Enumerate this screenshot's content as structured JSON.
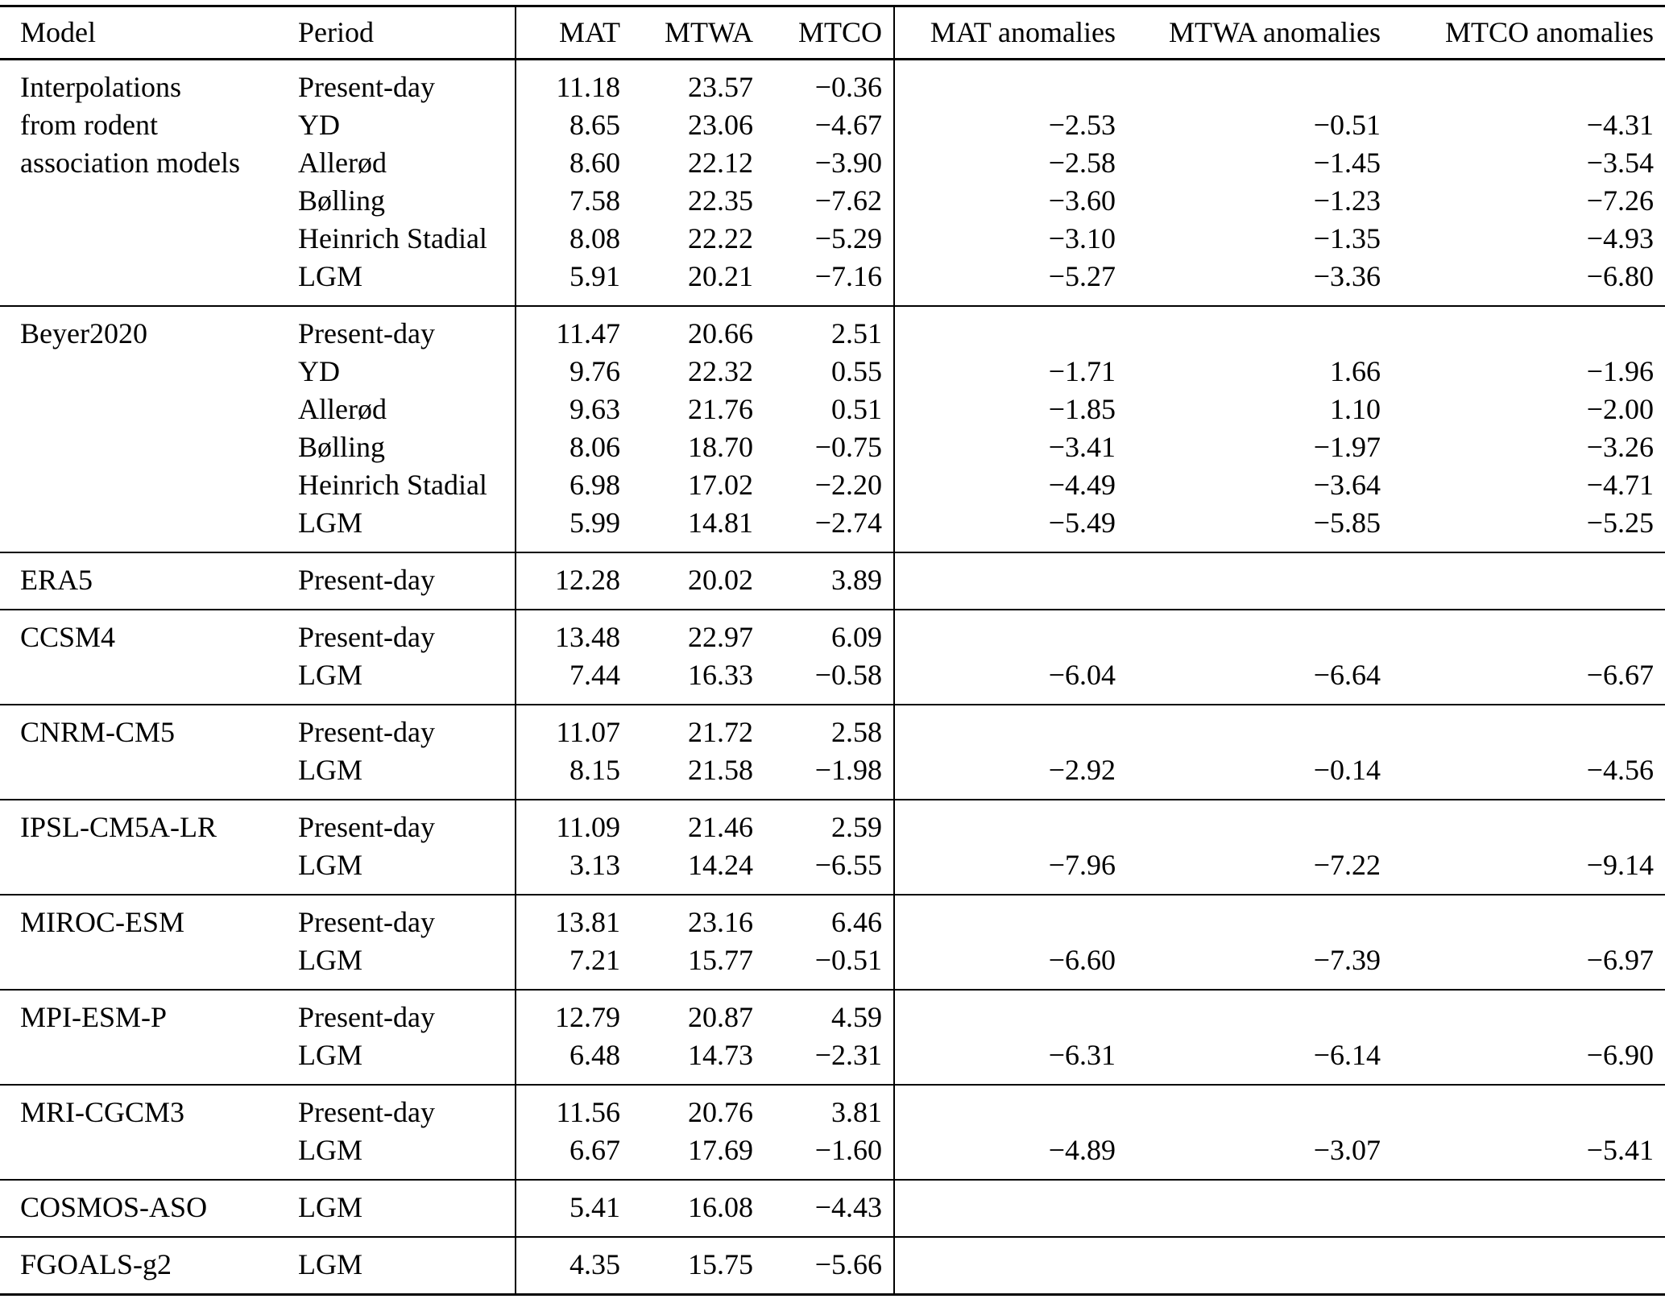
{
  "table": {
    "columns": [
      {
        "key": "model",
        "label": "Model"
      },
      {
        "key": "period",
        "label": "Period"
      },
      {
        "key": "mat",
        "label": "MAT"
      },
      {
        "key": "mtwa",
        "label": "MTWA"
      },
      {
        "key": "mtco",
        "label": "MTCO"
      },
      {
        "key": "mat_anom",
        "label": "MAT anomalies"
      },
      {
        "key": "mtwa_anom",
        "label": "MTWA anomalies"
      },
      {
        "key": "mtco_anom",
        "label": "MTCO anomalies"
      }
    ],
    "blocks": [
      {
        "model_lines": [
          "Interpolations",
          "from rodent",
          "association models"
        ],
        "rows": [
          {
            "period": "Present-day",
            "mat": "11.18",
            "mtwa": "23.57",
            "mtco": "−0.36",
            "mat_anom": "",
            "mtwa_anom": "",
            "mtco_anom": ""
          },
          {
            "period": "YD",
            "mat": "8.65",
            "mtwa": "23.06",
            "mtco": "−4.67",
            "mat_anom": "−2.53",
            "mtwa_anom": "−0.51",
            "mtco_anom": "−4.31"
          },
          {
            "period": "Allerød",
            "mat": "8.60",
            "mtwa": "22.12",
            "mtco": "−3.90",
            "mat_anom": "−2.58",
            "mtwa_anom": "−1.45",
            "mtco_anom": "−3.54"
          },
          {
            "period": "Bølling",
            "mat": "7.58",
            "mtwa": "22.35",
            "mtco": "−7.62",
            "mat_anom": "−3.60",
            "mtwa_anom": "−1.23",
            "mtco_anom": "−7.26"
          },
          {
            "period": "Heinrich Stadial",
            "mat": "8.08",
            "mtwa": "22.22",
            "mtco": "−5.29",
            "mat_anom": "−3.10",
            "mtwa_anom": "−1.35",
            "mtco_anom": "−4.93"
          },
          {
            "period": "LGM",
            "mat": "5.91",
            "mtwa": "20.21",
            "mtco": "−7.16",
            "mat_anom": "−5.27",
            "mtwa_anom": "−3.36",
            "mtco_anom": "−6.80"
          }
        ]
      },
      {
        "model_lines": [
          "Beyer2020"
        ],
        "rows": [
          {
            "period": "Present-day",
            "mat": "11.47",
            "mtwa": "20.66",
            "mtco": "2.51",
            "mat_anom": "",
            "mtwa_anom": "",
            "mtco_anom": ""
          },
          {
            "period": "YD",
            "mat": "9.76",
            "mtwa": "22.32",
            "mtco": "0.55",
            "mat_anom": "−1.71",
            "mtwa_anom": "1.66",
            "mtco_anom": "−1.96"
          },
          {
            "period": "Allerød",
            "mat": "9.63",
            "mtwa": "21.76",
            "mtco": "0.51",
            "mat_anom": "−1.85",
            "mtwa_anom": "1.10",
            "mtco_anom": "−2.00"
          },
          {
            "period": "Bølling",
            "mat": "8.06",
            "mtwa": "18.70",
            "mtco": "−0.75",
            "mat_anom": "−3.41",
            "mtwa_anom": "−1.97",
            "mtco_anom": "−3.26"
          },
          {
            "period": "Heinrich Stadial",
            "mat": "6.98",
            "mtwa": "17.02",
            "mtco": "−2.20",
            "mat_anom": "−4.49",
            "mtwa_anom": "−3.64",
            "mtco_anom": "−4.71"
          },
          {
            "period": "LGM",
            "mat": "5.99",
            "mtwa": "14.81",
            "mtco": "−2.74",
            "mat_anom": "−5.49",
            "mtwa_anom": "−5.85",
            "mtco_anom": "−5.25"
          }
        ]
      },
      {
        "model_lines": [
          "ERA5"
        ],
        "rows": [
          {
            "period": "Present-day",
            "mat": "12.28",
            "mtwa": "20.02",
            "mtco": "3.89",
            "mat_anom": "",
            "mtwa_anom": "",
            "mtco_anom": ""
          }
        ]
      },
      {
        "model_lines": [
          "CCSM4"
        ],
        "rows": [
          {
            "period": "Present-day",
            "mat": "13.48",
            "mtwa": "22.97",
            "mtco": "6.09",
            "mat_anom": "",
            "mtwa_anom": "",
            "mtco_anom": ""
          },
          {
            "period": "LGM",
            "mat": "7.44",
            "mtwa": "16.33",
            "mtco": "−0.58",
            "mat_anom": "−6.04",
            "mtwa_anom": "−6.64",
            "mtco_anom": "−6.67"
          }
        ]
      },
      {
        "model_lines": [
          "CNRM-CM5"
        ],
        "rows": [
          {
            "period": "Present-day",
            "mat": "11.07",
            "mtwa": "21.72",
            "mtco": "2.58",
            "mat_anom": "",
            "mtwa_anom": "",
            "mtco_anom": ""
          },
          {
            "period": "LGM",
            "mat": "8.15",
            "mtwa": "21.58",
            "mtco": "−1.98",
            "mat_anom": "−2.92",
            "mtwa_anom": "−0.14",
            "mtco_anom": "−4.56"
          }
        ]
      },
      {
        "model_lines": [
          "IPSL-CM5A-LR"
        ],
        "rows": [
          {
            "period": "Present-day",
            "mat": "11.09",
            "mtwa": "21.46",
            "mtco": "2.59",
            "mat_anom": "",
            "mtwa_anom": "",
            "mtco_anom": ""
          },
          {
            "period": "LGM",
            "mat": "3.13",
            "mtwa": "14.24",
            "mtco": "−6.55",
            "mat_anom": "−7.96",
            "mtwa_anom": "−7.22",
            "mtco_anom": "−9.14"
          }
        ]
      },
      {
        "model_lines": [
          "MIROC-ESM"
        ],
        "rows": [
          {
            "period": "Present-day",
            "mat": "13.81",
            "mtwa": "23.16",
            "mtco": "6.46",
            "mat_anom": "",
            "mtwa_anom": "",
            "mtco_anom": ""
          },
          {
            "period": "LGM",
            "mat": "7.21",
            "mtwa": "15.77",
            "mtco": "−0.51",
            "mat_anom": "−6.60",
            "mtwa_anom": "−7.39",
            "mtco_anom": "−6.97"
          }
        ]
      },
      {
        "model_lines": [
          "MPI-ESM-P"
        ],
        "rows": [
          {
            "period": "Present-day",
            "mat": "12.79",
            "mtwa": "20.87",
            "mtco": "4.59",
            "mat_anom": "",
            "mtwa_anom": "",
            "mtco_anom": ""
          },
          {
            "period": "LGM",
            "mat": "6.48",
            "mtwa": "14.73",
            "mtco": "−2.31",
            "mat_anom": "−6.31",
            "mtwa_anom": "−6.14",
            "mtco_anom": "−6.90"
          }
        ]
      },
      {
        "model_lines": [
          "MRI-CGCM3"
        ],
        "rows": [
          {
            "period": "Present-day",
            "mat": "11.56",
            "mtwa": "20.76",
            "mtco": "3.81",
            "mat_anom": "",
            "mtwa_anom": "",
            "mtco_anom": ""
          },
          {
            "period": "LGM",
            "mat": "6.67",
            "mtwa": "17.69",
            "mtco": "−1.60",
            "mat_anom": "−4.89",
            "mtwa_anom": "−3.07",
            "mtco_anom": "−5.41"
          }
        ]
      },
      {
        "model_lines": [
          "COSMOS-ASO"
        ],
        "rows": [
          {
            "period": "LGM",
            "mat": "5.41",
            "mtwa": "16.08",
            "mtco": "−4.43",
            "mat_anom": "",
            "mtwa_anom": "",
            "mtco_anom": ""
          }
        ]
      },
      {
        "model_lines": [
          "FGOALS-g2"
        ],
        "rows": [
          {
            "period": "LGM",
            "mat": "4.35",
            "mtwa": "15.75",
            "mtco": "−5.66",
            "mat_anom": "",
            "mtwa_anom": "",
            "mtco_anom": ""
          }
        ]
      }
    ]
  }
}
